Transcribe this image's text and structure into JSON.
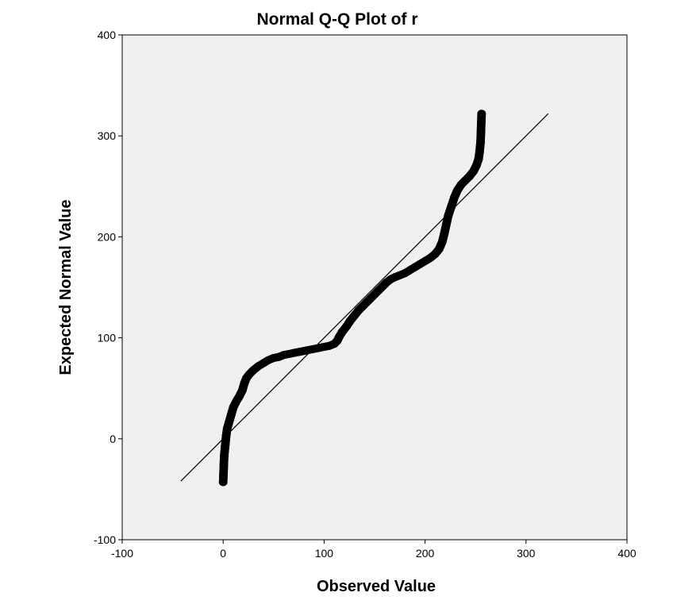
{
  "chart_data": {
    "type": "scatter",
    "title": "Normal Q-Q Plot of r",
    "xlabel": "Observed Value",
    "ylabel": "Expected Normal Value",
    "xlim": [
      -100,
      400
    ],
    "ylim": [
      -100,
      400
    ],
    "xticks": [
      -100,
      0,
      100,
      200,
      300,
      400
    ],
    "yticks": [
      -100,
      0,
      100,
      200,
      300,
      400
    ],
    "x_tick_labels": [
      "-100",
      "0",
      "100",
      "200",
      "300",
      "400"
    ],
    "y_tick_labels": [
      "-100",
      "0",
      "100",
      "200",
      "300",
      "400"
    ],
    "grid": false,
    "legend": "none",
    "colors": {
      "plot_background": "#f0f0f0",
      "marker": "#000000",
      "reference_line": "#000000"
    },
    "reference_line": {
      "x": [
        -42,
        322
      ],
      "y": [
        -42,
        322
      ]
    },
    "series": [
      {
        "marker": "open-circle",
        "points": [
          [
            0,
            -43
          ],
          [
            1,
            -17
          ],
          [
            2,
            -7
          ],
          [
            3,
            3
          ],
          [
            4,
            10
          ],
          [
            6,
            17
          ],
          [
            8,
            24
          ],
          [
            10,
            31
          ],
          [
            13,
            37
          ],
          [
            16,
            42
          ],
          [
            19,
            48
          ],
          [
            21,
            55
          ],
          [
            23,
            60
          ],
          [
            26,
            64
          ],
          [
            30,
            68
          ],
          [
            35,
            72
          ],
          [
            40,
            75
          ],
          [
            45,
            78
          ],
          [
            50,
            80
          ],
          [
            55,
            81
          ],
          [
            60,
            83
          ],
          [
            65,
            84
          ],
          [
            70,
            85
          ],
          [
            75,
            86
          ],
          [
            80,
            87
          ],
          [
            85,
            88
          ],
          [
            90,
            89
          ],
          [
            95,
            90
          ],
          [
            100,
            91
          ],
          [
            105,
            92
          ],
          [
            110,
            94
          ],
          [
            113,
            97
          ],
          [
            115,
            101
          ],
          [
            118,
            106
          ],
          [
            122,
            111
          ],
          [
            126,
            117
          ],
          [
            130,
            122
          ],
          [
            134,
            127
          ],
          [
            138,
            131
          ],
          [
            142,
            135
          ],
          [
            146,
            139
          ],
          [
            150,
            143
          ],
          [
            154,
            147
          ],
          [
            158,
            151
          ],
          [
            162,
            155
          ],
          [
            166,
            158
          ],
          [
            170,
            160
          ],
          [
            175,
            162
          ],
          [
            180,
            164
          ],
          [
            185,
            167
          ],
          [
            190,
            170
          ],
          [
            195,
            173
          ],
          [
            200,
            176
          ],
          [
            205,
            179
          ],
          [
            210,
            183
          ],
          [
            214,
            188
          ],
          [
            217,
            195
          ],
          [
            219,
            203
          ],
          [
            221,
            212
          ],
          [
            223,
            221
          ],
          [
            226,
            230
          ],
          [
            229,
            239
          ],
          [
            232,
            246
          ],
          [
            236,
            252
          ],
          [
            240,
            256
          ],
          [
            244,
            260
          ],
          [
            248,
            265
          ],
          [
            251,
            271
          ],
          [
            253,
            277
          ],
          [
            254,
            284
          ],
          [
            255,
            294
          ],
          [
            256,
            322
          ]
        ]
      }
    ]
  }
}
